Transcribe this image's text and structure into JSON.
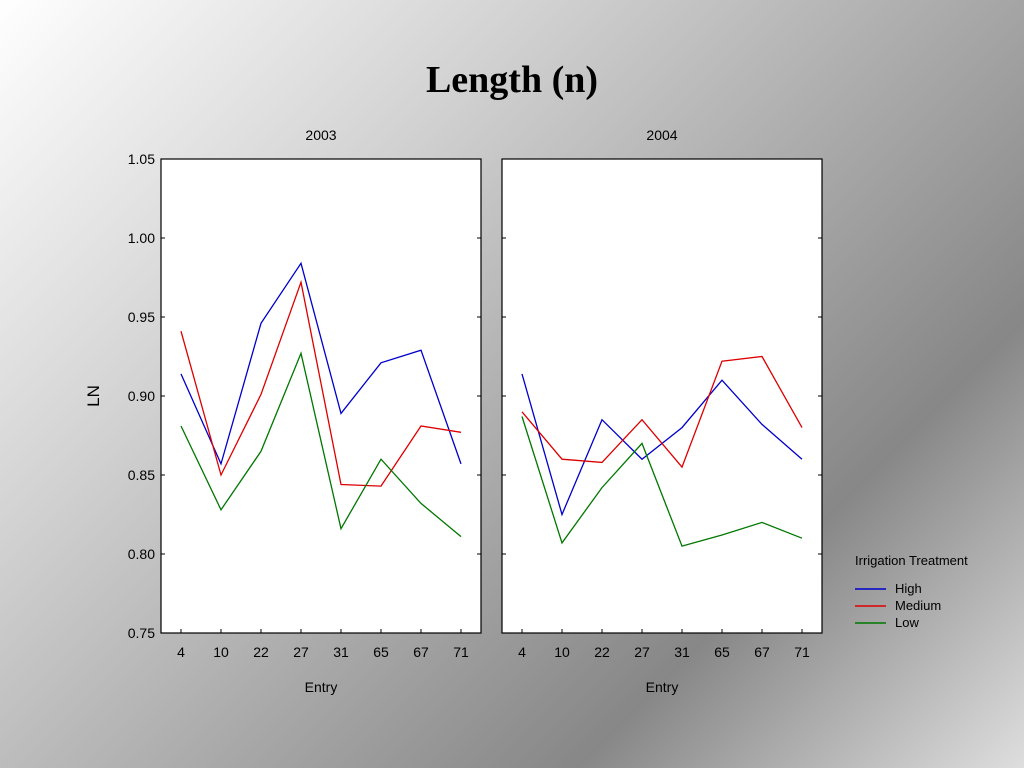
{
  "slide": {
    "title": "Length (n)"
  },
  "chart_data": [
    {
      "type": "line",
      "title": "2003",
      "xlabel": "Entry",
      "ylabel": "LN",
      "categories": [
        "4",
        "10",
        "22",
        "27",
        "31",
        "65",
        "67",
        "71"
      ],
      "ylim": [
        0.75,
        1.05
      ],
      "yticks": [
        "0.75",
        "0.80",
        "0.85",
        "0.90",
        "0.95",
        "1.00",
        "1.05"
      ],
      "series": [
        {
          "name": "High",
          "color": "#0000cc",
          "values": [
            0.914,
            0.857,
            0.946,
            0.984,
            0.889,
            0.921,
            0.929,
            0.857
          ]
        },
        {
          "name": "Medium",
          "color": "#dd0000",
          "values": [
            0.941,
            0.85,
            0.901,
            0.972,
            0.844,
            0.843,
            0.881,
            0.877
          ]
        },
        {
          "name": "Low",
          "color": "#007700",
          "values": [
            0.881,
            0.828,
            0.865,
            0.927,
            0.816,
            0.86,
            0.832,
            0.811
          ]
        }
      ]
    },
    {
      "type": "line",
      "title": "2004",
      "xlabel": "Entry",
      "ylabel": "",
      "categories": [
        "4",
        "10",
        "22",
        "27",
        "31",
        "65",
        "67",
        "71"
      ],
      "ylim": [
        0.75,
        1.05
      ],
      "series": [
        {
          "name": "High",
          "color": "#0000cc",
          "values": [
            0.914,
            0.825,
            0.885,
            0.86,
            0.88,
            0.91,
            0.882,
            0.86
          ]
        },
        {
          "name": "Medium",
          "color": "#dd0000",
          "values": [
            0.89,
            0.86,
            0.858,
            0.885,
            0.855,
            0.922,
            0.925,
            0.88
          ]
        },
        {
          "name": "Low",
          "color": "#007700",
          "values": [
            0.887,
            0.807,
            0.842,
            0.87,
            0.805,
            0.812,
            0.82,
            0.81
          ]
        }
      ]
    }
  ],
  "legend": {
    "title": "Irrigation Treatment",
    "placement": "right",
    "entries": [
      {
        "label": "High",
        "color": "#0000cc"
      },
      {
        "label": "Medium",
        "color": "#dd0000"
      },
      {
        "label": "Low",
        "color": "#007700"
      }
    ]
  }
}
